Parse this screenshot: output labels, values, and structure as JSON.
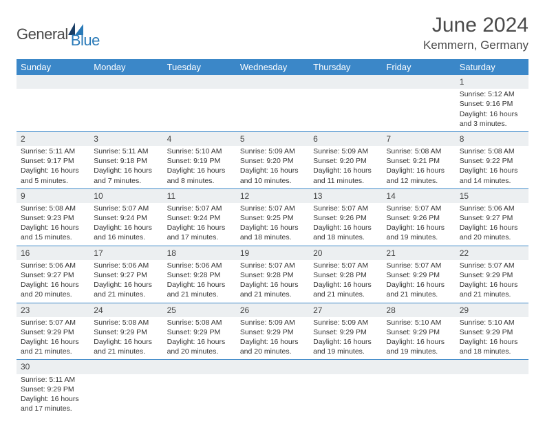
{
  "logo": {
    "text1": "General",
    "text2": "Blue"
  },
  "title": "June 2024",
  "subtitle": "Kemmern, Germany",
  "colors": {
    "header_bg": "#3b87c8",
    "header_text": "#ffffff",
    "daynum_bg": "#eceff1",
    "border": "#3b87c8",
    "logo_blue": "#2a7ab8"
  },
  "weekdays": [
    "Sunday",
    "Monday",
    "Tuesday",
    "Wednesday",
    "Thursday",
    "Friday",
    "Saturday"
  ],
  "weeks": [
    [
      null,
      null,
      null,
      null,
      null,
      null,
      {
        "d": "1",
        "sr": "Sunrise: 5:12 AM",
        "ss": "Sunset: 9:16 PM",
        "dl1": "Daylight: 16 hours",
        "dl2": "and 3 minutes."
      }
    ],
    [
      {
        "d": "2",
        "sr": "Sunrise: 5:11 AM",
        "ss": "Sunset: 9:17 PM",
        "dl1": "Daylight: 16 hours",
        "dl2": "and 5 minutes."
      },
      {
        "d": "3",
        "sr": "Sunrise: 5:11 AM",
        "ss": "Sunset: 9:18 PM",
        "dl1": "Daylight: 16 hours",
        "dl2": "and 7 minutes."
      },
      {
        "d": "4",
        "sr": "Sunrise: 5:10 AM",
        "ss": "Sunset: 9:19 PM",
        "dl1": "Daylight: 16 hours",
        "dl2": "and 8 minutes."
      },
      {
        "d": "5",
        "sr": "Sunrise: 5:09 AM",
        "ss": "Sunset: 9:20 PM",
        "dl1": "Daylight: 16 hours",
        "dl2": "and 10 minutes."
      },
      {
        "d": "6",
        "sr": "Sunrise: 5:09 AM",
        "ss": "Sunset: 9:20 PM",
        "dl1": "Daylight: 16 hours",
        "dl2": "and 11 minutes."
      },
      {
        "d": "7",
        "sr": "Sunrise: 5:08 AM",
        "ss": "Sunset: 9:21 PM",
        "dl1": "Daylight: 16 hours",
        "dl2": "and 12 minutes."
      },
      {
        "d": "8",
        "sr": "Sunrise: 5:08 AM",
        "ss": "Sunset: 9:22 PM",
        "dl1": "Daylight: 16 hours",
        "dl2": "and 14 minutes."
      }
    ],
    [
      {
        "d": "9",
        "sr": "Sunrise: 5:08 AM",
        "ss": "Sunset: 9:23 PM",
        "dl1": "Daylight: 16 hours",
        "dl2": "and 15 minutes."
      },
      {
        "d": "10",
        "sr": "Sunrise: 5:07 AM",
        "ss": "Sunset: 9:24 PM",
        "dl1": "Daylight: 16 hours",
        "dl2": "and 16 minutes."
      },
      {
        "d": "11",
        "sr": "Sunrise: 5:07 AM",
        "ss": "Sunset: 9:24 PM",
        "dl1": "Daylight: 16 hours",
        "dl2": "and 17 minutes."
      },
      {
        "d": "12",
        "sr": "Sunrise: 5:07 AM",
        "ss": "Sunset: 9:25 PM",
        "dl1": "Daylight: 16 hours",
        "dl2": "and 18 minutes."
      },
      {
        "d": "13",
        "sr": "Sunrise: 5:07 AM",
        "ss": "Sunset: 9:26 PM",
        "dl1": "Daylight: 16 hours",
        "dl2": "and 18 minutes."
      },
      {
        "d": "14",
        "sr": "Sunrise: 5:07 AM",
        "ss": "Sunset: 9:26 PM",
        "dl1": "Daylight: 16 hours",
        "dl2": "and 19 minutes."
      },
      {
        "d": "15",
        "sr": "Sunrise: 5:06 AM",
        "ss": "Sunset: 9:27 PM",
        "dl1": "Daylight: 16 hours",
        "dl2": "and 20 minutes."
      }
    ],
    [
      {
        "d": "16",
        "sr": "Sunrise: 5:06 AM",
        "ss": "Sunset: 9:27 PM",
        "dl1": "Daylight: 16 hours",
        "dl2": "and 20 minutes."
      },
      {
        "d": "17",
        "sr": "Sunrise: 5:06 AM",
        "ss": "Sunset: 9:27 PM",
        "dl1": "Daylight: 16 hours",
        "dl2": "and 21 minutes."
      },
      {
        "d": "18",
        "sr": "Sunrise: 5:06 AM",
        "ss": "Sunset: 9:28 PM",
        "dl1": "Daylight: 16 hours",
        "dl2": "and 21 minutes."
      },
      {
        "d": "19",
        "sr": "Sunrise: 5:07 AM",
        "ss": "Sunset: 9:28 PM",
        "dl1": "Daylight: 16 hours",
        "dl2": "and 21 minutes."
      },
      {
        "d": "20",
        "sr": "Sunrise: 5:07 AM",
        "ss": "Sunset: 9:28 PM",
        "dl1": "Daylight: 16 hours",
        "dl2": "and 21 minutes."
      },
      {
        "d": "21",
        "sr": "Sunrise: 5:07 AM",
        "ss": "Sunset: 9:29 PM",
        "dl1": "Daylight: 16 hours",
        "dl2": "and 21 minutes."
      },
      {
        "d": "22",
        "sr": "Sunrise: 5:07 AM",
        "ss": "Sunset: 9:29 PM",
        "dl1": "Daylight: 16 hours",
        "dl2": "and 21 minutes."
      }
    ],
    [
      {
        "d": "23",
        "sr": "Sunrise: 5:07 AM",
        "ss": "Sunset: 9:29 PM",
        "dl1": "Daylight: 16 hours",
        "dl2": "and 21 minutes."
      },
      {
        "d": "24",
        "sr": "Sunrise: 5:08 AM",
        "ss": "Sunset: 9:29 PM",
        "dl1": "Daylight: 16 hours",
        "dl2": "and 21 minutes."
      },
      {
        "d": "25",
        "sr": "Sunrise: 5:08 AM",
        "ss": "Sunset: 9:29 PM",
        "dl1": "Daylight: 16 hours",
        "dl2": "and 20 minutes."
      },
      {
        "d": "26",
        "sr": "Sunrise: 5:09 AM",
        "ss": "Sunset: 9:29 PM",
        "dl1": "Daylight: 16 hours",
        "dl2": "and 20 minutes."
      },
      {
        "d": "27",
        "sr": "Sunrise: 5:09 AM",
        "ss": "Sunset: 9:29 PM",
        "dl1": "Daylight: 16 hours",
        "dl2": "and 19 minutes."
      },
      {
        "d": "28",
        "sr": "Sunrise: 5:10 AM",
        "ss": "Sunset: 9:29 PM",
        "dl1": "Daylight: 16 hours",
        "dl2": "and 19 minutes."
      },
      {
        "d": "29",
        "sr": "Sunrise: 5:10 AM",
        "ss": "Sunset: 9:29 PM",
        "dl1": "Daylight: 16 hours",
        "dl2": "and 18 minutes."
      }
    ],
    [
      {
        "d": "30",
        "sr": "Sunrise: 5:11 AM",
        "ss": "Sunset: 9:29 PM",
        "dl1": "Daylight: 16 hours",
        "dl2": "and 17 minutes."
      },
      null,
      null,
      null,
      null,
      null,
      null
    ]
  ]
}
